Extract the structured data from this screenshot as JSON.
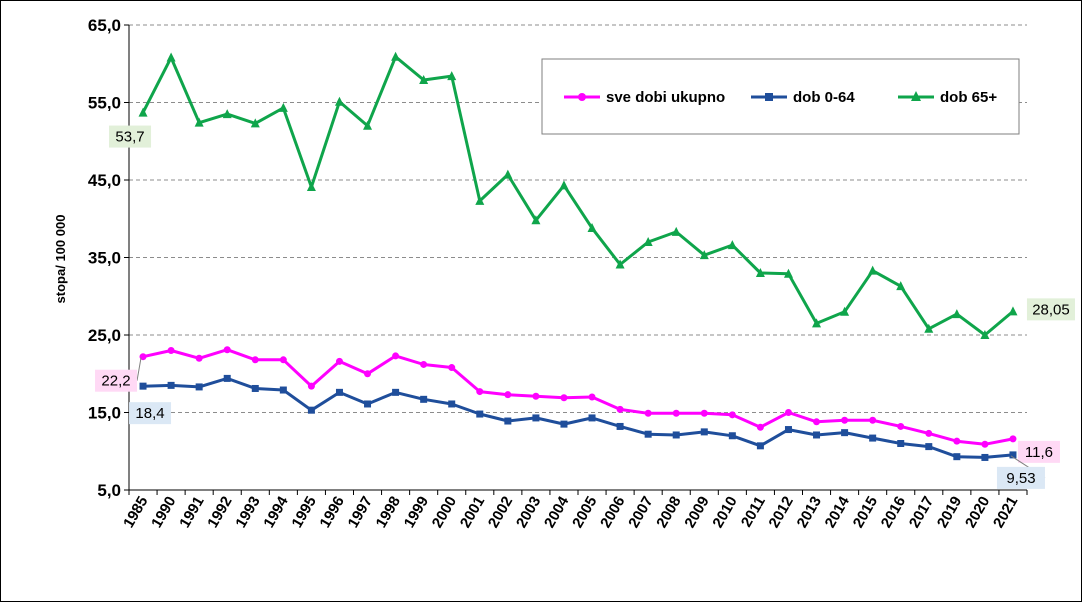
{
  "chart_data": {
    "type": "line",
    "title": "",
    "xlabel": "",
    "ylabel": "stopa/ 100 000",
    "ylim": [
      5,
      65
    ],
    "yticks": [
      "5,0",
      "15,0",
      "25,0",
      "35,0",
      "45,0",
      "55,0",
      "65,0"
    ],
    "grid": "horizontal",
    "legend_position": "top-right",
    "categories": [
      "1985",
      "1990",
      "1991",
      "1992",
      "1993",
      "1994",
      "1995",
      "1996",
      "1997",
      "1998",
      "1999",
      "2000",
      "2001",
      "2002",
      "2003",
      "2004",
      "2005",
      "2006",
      "2007",
      "2008",
      "2009",
      "2010",
      "2011",
      "2012",
      "2013",
      "2014",
      "2015",
      "2016",
      "2017",
      "2019",
      "2020",
      "2021"
    ],
    "series": [
      {
        "name": "sve dobi ukupno",
        "color": "#ff00ff",
        "marker": "circle",
        "values": [
          22.2,
          23.0,
          22.0,
          23.1,
          21.8,
          21.8,
          18.4,
          21.6,
          20.0,
          22.3,
          21.2,
          20.8,
          17.7,
          17.3,
          17.1,
          16.9,
          17.0,
          15.4,
          14.9,
          14.9,
          14.9,
          14.7,
          13.1,
          15.0,
          13.8,
          14.0,
          14.0,
          13.2,
          12.3,
          11.3,
          10.9,
          11.6
        ],
        "annotations": [
          {
            "index": 0,
            "text": "22,2",
            "bg": "#ffd9f5"
          },
          {
            "index": 31,
            "text": "11,6",
            "bg": "#ffd9f5"
          }
        ]
      },
      {
        "name": "dob 0-64",
        "color": "#1f4e9b",
        "marker": "square",
        "values": [
          18.4,
          18.5,
          18.3,
          19.4,
          18.1,
          17.9,
          15.3,
          17.6,
          16.1,
          17.6,
          16.7,
          16.1,
          14.8,
          13.9,
          14.3,
          13.5,
          14.3,
          13.2,
          12.2,
          12.1,
          12.5,
          12.0,
          10.7,
          12.8,
          12.1,
          12.4,
          11.7,
          11.0,
          10.6,
          9.3,
          9.2,
          9.53
        ],
        "annotations": [
          {
            "index": 0,
            "text": "18,4",
            "bg": "#dbe8f5"
          },
          {
            "index": 31,
            "text": "9,53",
            "bg": "#dbe8f5"
          }
        ]
      },
      {
        "name": "dob 65+",
        "color": "#0fa54b",
        "marker": "triangle",
        "values": [
          53.7,
          60.8,
          52.4,
          53.5,
          52.3,
          54.3,
          44.1,
          55.1,
          52.0,
          60.9,
          57.9,
          58.4,
          42.3,
          45.7,
          39.8,
          44.3,
          38.8,
          34.1,
          37.0,
          38.3,
          35.3,
          36.6,
          33.0,
          32.9,
          26.5,
          28.0,
          33.3,
          31.3,
          25.8,
          27.7,
          25.0,
          28.05
        ],
        "annotations": [
          {
            "index": 0,
            "text": "53,7",
            "bg": "#e2f0d9"
          },
          {
            "index": 31,
            "text": "28,05",
            "bg": "#e2f0d9"
          }
        ]
      }
    ]
  }
}
